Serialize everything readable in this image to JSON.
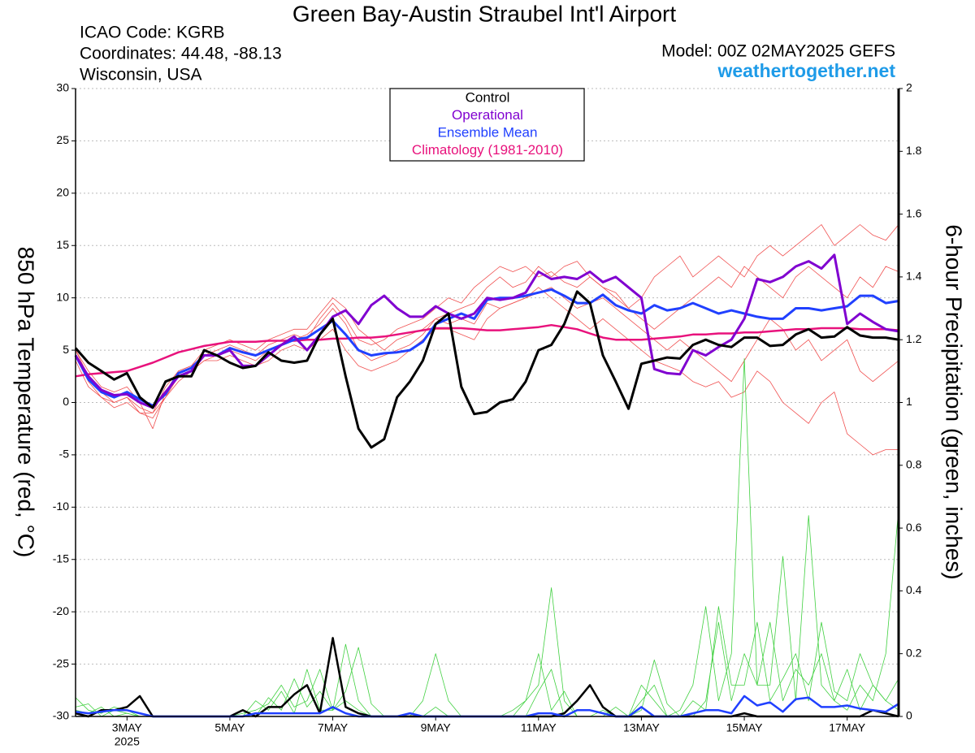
{
  "chart_data": {
    "type": "line",
    "title": "Green Bay-Austin Straubel Int'l Airport",
    "info_lines": [
      "ICAO Code: KGRB",
      "Coordinates: 44.48, -88.13",
      "Wisconsin, USA"
    ],
    "model_label": "Model: 00Z 02MAY2025 GEFS",
    "site_label": "weathertogether.net",
    "site_color": "#1e9be8",
    "ylabel": "850 hPa Temperature (red, °C)",
    "y2label": "6-hour Precipitation (green, inches)",
    "x_year_label": "2025",
    "categories": [
      null,
      null,
      null,
      null,
      "3MAY",
      null,
      null,
      null,
      null,
      null,
      null,
      null,
      "5MAY",
      null,
      null,
      null,
      null,
      null,
      null,
      null,
      "7MAY",
      null,
      null,
      null,
      null,
      null,
      null,
      null,
      "9MAY",
      null,
      null,
      null,
      null,
      null,
      null,
      null,
      "11MAY",
      null,
      null,
      null,
      null,
      null,
      null,
      null,
      "13MAY",
      null,
      null,
      null,
      null,
      null,
      null,
      null,
      "15MAY",
      null,
      null,
      null,
      null,
      null,
      null,
      null,
      "17MAY",
      null,
      null,
      null,
      null
    ],
    "ylim": [
      -30,
      30
    ],
    "yticks": [
      -30,
      -25,
      -20,
      -15,
      -10,
      -5,
      0,
      5,
      10,
      15,
      20,
      25,
      30
    ],
    "y2lim": [
      0,
      2
    ],
    "y2ticks": [
      0,
      0.2,
      0.4,
      0.6,
      0.8,
      1,
      1.2,
      1.4,
      1.6,
      1.8,
      2
    ],
    "grid": true,
    "legend_position": "top",
    "ensemble_temperature": [
      {
        "color": "#f05050",
        "values": [
          5,
          2.5,
          1,
          0,
          0.5,
          -0.5,
          -1,
          1.5,
          3,
          3.5,
          4.5,
          5,
          5.5,
          5,
          4.5,
          5.5,
          6,
          6.5,
          6,
          8,
          9.5,
          8,
          6,
          5.5,
          6,
          7,
          7.5,
          8,
          9,
          10,
          9.5,
          11,
          12,
          13,
          12.5,
          13,
          12,
          12.5,
          11.5,
          11,
          12,
          11,
          10,
          9,
          10,
          12,
          13,
          14,
          12,
          13,
          14,
          13,
          12,
          14,
          15,
          14,
          15,
          16,
          17,
          15,
          16,
          17,
          16,
          15.5,
          17
        ]
      },
      {
        "color": "#f05050",
        "values": [
          4.5,
          2,
          0.5,
          -0.5,
          0,
          -1,
          -1.5,
          0.5,
          2,
          3,
          4,
          4,
          4.5,
          4,
          3.5,
          4,
          5,
          5.5,
          5,
          6,
          7,
          5,
          3.5,
          3,
          3.5,
          4,
          5,
          6,
          7,
          7,
          6.5,
          6,
          8,
          9,
          9.5,
          10,
          11,
          10,
          9,
          8,
          7,
          8,
          7,
          6,
          5,
          4,
          3.5,
          3,
          2,
          1.5,
          2,
          0.5,
          1,
          3,
          2,
          0,
          -1,
          -2,
          0,
          1,
          -3,
          -4,
          -5,
          -4.5,
          -4.5
        ]
      },
      {
        "color": "#f05050",
        "values": [
          5,
          3,
          1.5,
          1,
          1.5,
          0,
          -2.5,
          1,
          3,
          3.5,
          5,
          5.5,
          6,
          5.5,
          5,
          6,
          6.5,
          7,
          7,
          8.5,
          10,
          9,
          7,
          6,
          5,
          6,
          6.5,
          7,
          8,
          8.5,
          9,
          9.5,
          11,
          12,
          11,
          11.5,
          13,
          12,
          13,
          13.5,
          12,
          11,
          10.5,
          9,
          8,
          7,
          8,
          9,
          10,
          11,
          12,
          11,
          13,
          12,
          11,
          10,
          12,
          13,
          12,
          11,
          10,
          12,
          11,
          13,
          12.5
        ]
      },
      {
        "color": "#f05050",
        "values": [
          4,
          1.5,
          0.5,
          0,
          0.5,
          -1,
          -1,
          0.5,
          2.5,
          3,
          4,
          4.5,
          5,
          4.5,
          4,
          5,
          5.5,
          6,
          6.5,
          7.5,
          9,
          7.5,
          5,
          4,
          4.5,
          5,
          5.5,
          6.5,
          8,
          7.5,
          8,
          7.5,
          9.5,
          9,
          9.5,
          10,
          10.5,
          11,
          10,
          9,
          9.5,
          10,
          9,
          8,
          7,
          6,
          5,
          6,
          5,
          4,
          3,
          2,
          4,
          6,
          8,
          7,
          5,
          6,
          4,
          5,
          6,
          3,
          2,
          3,
          4
        ]
      }
    ],
    "ensemble_precip": [
      {
        "color": "#40d040",
        "axis": "y2",
        "values": [
          0.06,
          0.02,
          0.01,
          0.03,
          0.02,
          0,
          0,
          0,
          0,
          0,
          0,
          0,
          0,
          0.01,
          0.02,
          0.04,
          0.1,
          0.03,
          0.05,
          0.15,
          0.02,
          0.23,
          0.05,
          0,
          0,
          0,
          0,
          0,
          0,
          0,
          0,
          0,
          0,
          0,
          0,
          0.05,
          0.1,
          0.41,
          0.05,
          0,
          0,
          0,
          0,
          0,
          0.05,
          0.1,
          0,
          0.02,
          0.1,
          0.35,
          0.05,
          0.2,
          1.14,
          0.1,
          0.3,
          0.05,
          0.15,
          0.1,
          0.2,
          0.05,
          0.02,
          0.1,
          0.05,
          0.2,
          0.66
        ]
      },
      {
        "color": "#40d040",
        "axis": "y2",
        "values": [
          0.03,
          0.04,
          0,
          0.02,
          0.01,
          0,
          0,
          0,
          0,
          0,
          0,
          0,
          0,
          0,
          0.05,
          0.02,
          0.08,
          0.01,
          0.15,
          0.02,
          0.02,
          0.08,
          0.22,
          0.04,
          0,
          0,
          0,
          0.05,
          0.2,
          0.05,
          0,
          0,
          0,
          0,
          0,
          0,
          0.08,
          0.15,
          0,
          0,
          0,
          0.02,
          0,
          0,
          0.1,
          0.05,
          0,
          0,
          0,
          0.05,
          0.3,
          0.05,
          0.2,
          0.1,
          0.1,
          0.51,
          0.05,
          0.64,
          0.1,
          0.05,
          0.15,
          0.02,
          0.1,
          0.05,
          0.12
        ]
      },
      {
        "color": "#40d040",
        "axis": "y2",
        "values": [
          0.02,
          0.01,
          0.03,
          0,
          0.01,
          0,
          0,
          0,
          0,
          0,
          0,
          0,
          0,
          0.02,
          0,
          0.06,
          0.02,
          0.12,
          0.03,
          0.08,
          0.02,
          0.05,
          0.02,
          0,
          0,
          0,
          0,
          0,
          0.03,
          0,
          0,
          0,
          0,
          0,
          0.02,
          0.05,
          0.2,
          0.02,
          0.08,
          0,
          0,
          0,
          0.03,
          0,
          0.02,
          0.18,
          0.04,
          0,
          0.05,
          0.02,
          0.35,
          0.1,
          0.1,
          0.3,
          0.05,
          0.12,
          0.2,
          0.05,
          0.3,
          0.08,
          0.05,
          0.2,
          0.1,
          0.05,
          0.02
        ]
      }
    ],
    "precip_series": [
      {
        "color": "#000000",
        "axis": "y2",
        "values": [
          0.01,
          0,
          0.02,
          0.02,
          0.03,
          0.065,
          0,
          0,
          0,
          0,
          0,
          0,
          0,
          0.02,
          0,
          0.03,
          0.03,
          0.07,
          0.1,
          0.01,
          0.25,
          0.03,
          0.01,
          0,
          0,
          0,
          0,
          0,
          0,
          0,
          0,
          0,
          0,
          0,
          0,
          0,
          0,
          0,
          0.01,
          0.05,
          0.1,
          0.03,
          0,
          0,
          0,
          0,
          0,
          0,
          0,
          0,
          0,
          0,
          0.01,
          0,
          0,
          0,
          0,
          0,
          0,
          0,
          0,
          0,
          0.02,
          0.01,
          0
        ]
      },
      {
        "color": "#2040ff",
        "axis": "y2",
        "values": [
          0.015,
          0.01,
          0.015,
          0.02,
          0.02,
          0.01,
          0,
          0,
          0,
          0,
          0,
          0,
          0,
          0,
          0.01,
          0.01,
          0.01,
          0.01,
          0.01,
          0.01,
          0.03,
          0.01,
          0,
          0,
          0,
          0,
          0.01,
          0,
          0,
          0,
          0,
          0,
          0,
          0,
          0,
          0,
          0.01,
          0.01,
          0,
          0.02,
          0.02,
          0.01,
          0,
          0,
          0.03,
          0,
          0,
          0,
          0.01,
          0.02,
          0.02,
          0.01,
          0.065,
          0.035,
          0.045,
          0.015,
          0.055,
          0.06,
          0.03,
          0.03,
          0.035,
          0.025,
          0.02,
          0.015,
          0.04
        ]
      }
    ],
    "series": [
      {
        "name": "Control",
        "color": "#000000",
        "values": [
          5.2,
          3.8,
          3,
          2.2,
          2.8,
          0.5,
          -0.5,
          2,
          2.5,
          2.5,
          5,
          4.5,
          3.8,
          3.3,
          3.5,
          4.8,
          4,
          3.8,
          4,
          6.5,
          8,
          2.5,
          -2.5,
          -4.3,
          -3.5,
          0.5,
          2,
          4,
          7.5,
          8.5,
          1.5,
          -1.1,
          -0.9,
          0,
          0.3,
          2,
          5,
          5.5,
          7.5,
          10.6,
          9.5,
          4.5,
          2,
          -0.6,
          3.7,
          4,
          4.3,
          4.2,
          5.5,
          6,
          5.5,
          5.3,
          6.2,
          6.2,
          5.4,
          5.5,
          6.5,
          7,
          6.2,
          6.3,
          7.2,
          6.4,
          6.2,
          6.2,
          6
        ]
      },
      {
        "name": "Operational",
        "color": "#8000d0",
        "values": [
          4.5,
          2.5,
          1.2,
          0.7,
          0.8,
          0,
          -0.5,
          1,
          2.5,
          3,
          4.5,
          4.5,
          5,
          3.5,
          3.5,
          4.5,
          5.5,
          6.3,
          5,
          6.5,
          8.2,
          8.8,
          7.5,
          9.3,
          10.2,
          9,
          8.2,
          8.2,
          9.2,
          8.5,
          8,
          8.5,
          10,
          9.8,
          10,
          10.5,
          12.5,
          11.8,
          12,
          11.8,
          12.5,
          11.5,
          12,
          11,
          10,
          3.2,
          2.8,
          2.7,
          5,
          4.5,
          5.3,
          6,
          8,
          11.8,
          11.5,
          12,
          13,
          13.5,
          12.8,
          14.1,
          7.5,
          8.5,
          7.7,
          7,
          6.8
        ]
      },
      {
        "name": "Ensemble Mean",
        "color": "#2040ff",
        "values": [
          4.5,
          2.2,
          1,
          0.5,
          1,
          0.3,
          -0.3,
          0.8,
          2.8,
          3.3,
          4.5,
          4.5,
          5.2,
          4.8,
          4.5,
          5,
          5.5,
          6,
          6.2,
          7,
          7.8,
          6.5,
          5,
          4.5,
          4.7,
          4.8,
          5,
          5.8,
          7.5,
          8,
          8.5,
          8,
          9.8,
          10,
          10,
          10.2,
          10.5,
          10.8,
          10.2,
          9.5,
          9.5,
          10.3,
          9.3,
          8.8,
          8.5,
          9.3,
          8.8,
          9,
          9.5,
          9,
          8.5,
          8.8,
          8.5,
          8.2,
          8,
          8,
          9,
          9,
          8.8,
          9,
          9.2,
          10.2,
          10.2,
          9.5,
          9.7
        ]
      },
      {
        "name": "Climatology (1981-2010)",
        "color": "#e8127c",
        "values": [
          2.5,
          2.7,
          2.8,
          2.9,
          3,
          3.4,
          3.8,
          4.3,
          4.8,
          5.1,
          5.4,
          5.6,
          5.8,
          5.8,
          5.8,
          5.9,
          5.9,
          5.9,
          6,
          6,
          6.1,
          6.1,
          6.2,
          6.2,
          6.3,
          6.5,
          6.7,
          6.9,
          7.1,
          7.1,
          7.1,
          7,
          6.9,
          6.9,
          7,
          7.1,
          7.2,
          7.4,
          7.2,
          7,
          6.6,
          6.2,
          6,
          6,
          6,
          6.1,
          6.2,
          6.3,
          6.5,
          6.5,
          6.6,
          6.6,
          6.7,
          6.7,
          6.8,
          6.9,
          7,
          7,
          7.1,
          7.1,
          7.1,
          7,
          7,
          7,
          6.9
        ]
      }
    ]
  }
}
